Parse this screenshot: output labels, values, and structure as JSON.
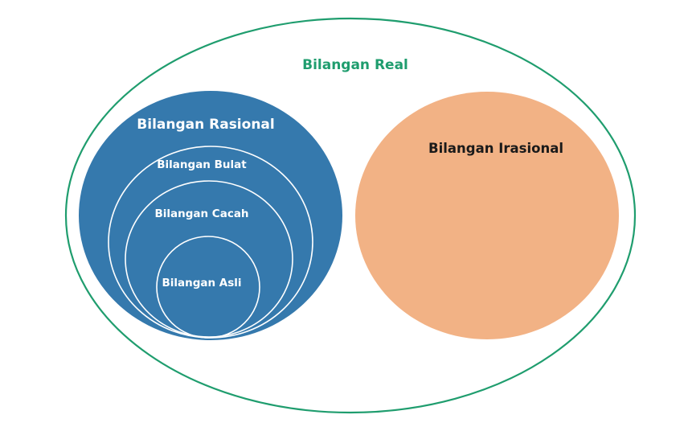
{
  "sets": {
    "real": {
      "label": "Bilangan Real"
    },
    "rasional": {
      "label": "Bilangan Rasional"
    },
    "irasional": {
      "label": "Bilangan Irasional"
    },
    "bulat": {
      "label": "Bilangan Bulat"
    },
    "cacah": {
      "label": "Bilangan Cacah"
    },
    "asli": {
      "label": "Bilangan Asli"
    }
  },
  "colors": {
    "real_outline": "#1f9d6e",
    "real_label": "#1f9d6e",
    "rasional_fill": "#3579ad",
    "irasional_fill": "#f2b285",
    "inner_outline": "#ffffff",
    "light_label": "#ffffff",
    "dark_label": "#1a1a1a"
  }
}
